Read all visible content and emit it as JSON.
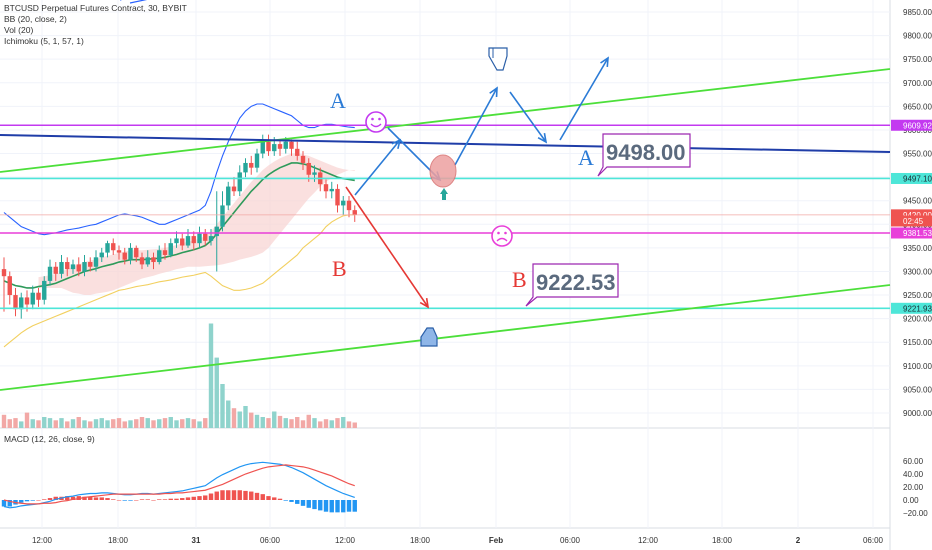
{
  "legend": {
    "symbol": "BTCUSD Perpetual Futures Contract, 30, BYBIT",
    "bb": "BB (20, close, 2)",
    "vol": "Vol (20)",
    "ichimoku": "Ichimoku (5, 1, 57, 1)",
    "macd": "MACD (12, 26, close, 9)"
  },
  "colors": {
    "up": "#26a69a",
    "down": "#ef5350",
    "bb": "#2962ff",
    "green_line": "#4cdf3a",
    "blue_line": "#1f3da8",
    "purple_line": "#c339f0",
    "cyan_line": "#4de6d8",
    "magenta_line": "#e83fd9",
    "arrow_blue": "#2b7bd6",
    "arrow_red": "#e53935",
    "annotation_box": "#9c27b0"
  },
  "chart_data": [
    {
      "type": "candlestick",
      "title": "BTCUSD Perpetual Futures Contract, 30, BYBIT",
      "y_ticks": [
        "9850.00",
        "9800.00",
        "9750.00",
        "9700.00",
        "9650.00",
        "9600.00",
        "9550.00",
        "9500.00",
        "9450.00",
        "9400.00",
        "9350.00",
        "9300.00",
        "9250.00",
        "9200.00",
        "9150.00",
        "9100.00",
        "9050.00",
        "9000.00"
      ],
      "x_ticks": [
        "12:00",
        "18:00",
        "31",
        "06:00",
        "12:00",
        "18:00",
        "Feb",
        "06:00",
        "12:00",
        "18:00",
        "2",
        "06:00"
      ],
      "ylim": [
        8975,
        9865
      ],
      "price_tags": [
        {
          "label": "9609.92",
          "color": "#c339f0"
        },
        {
          "label": "9497.10",
          "color": "#4de6d8"
        },
        {
          "label": "9420.00",
          "color": "#ef5350"
        },
        {
          "label": "02:45",
          "color": "#ef5350"
        },
        {
          "label": "9381.53",
          "color": "#e83fd9"
        },
        {
          "label": "9221.93",
          "color": "#4de6d8"
        }
      ],
      "candles": [
        [
          9305,
          9290,
          9330,
          9215
        ],
        [
          9290,
          9250,
          9300,
          9230
        ],
        [
          9250,
          9220,
          9265,
          9205
        ],
        [
          9220,
          9245,
          9255,
          9200
        ],
        [
          9245,
          9230,
          9260,
          9215
        ],
        [
          9230,
          9255,
          9270,
          9220
        ],
        [
          9255,
          9240,
          9265,
          9225
        ],
        [
          9240,
          9280,
          9290,
          9230
        ],
        [
          9280,
          9310,
          9325,
          9270
        ],
        [
          9310,
          9295,
          9320,
          9280
        ],
        [
          9295,
          9320,
          9335,
          9285
        ],
        [
          9320,
          9305,
          9330,
          9290
        ],
        [
          9305,
          9315,
          9325,
          9295
        ],
        [
          9315,
          9300,
          9330,
          9290
        ],
        [
          9300,
          9320,
          9335,
          9290
        ],
        [
          9320,
          9310,
          9330,
          9300
        ],
        [
          9310,
          9330,
          9345,
          9300
        ],
        [
          9330,
          9340,
          9350,
          9320
        ],
        [
          9340,
          9360,
          9365,
          9330
        ],
        [
          9360,
          9345,
          9370,
          9335
        ],
        [
          9345,
          9340,
          9355,
          9325
        ],
        [
          9340,
          9325,
          9350,
          9315
        ],
        [
          9325,
          9350,
          9360,
          9315
        ],
        [
          9350,
          9330,
          9355,
          9320
        ],
        [
          9330,
          9315,
          9340,
          9305
        ],
        [
          9315,
          9330,
          9345,
          9310
        ],
        [
          9330,
          9320,
          9340,
          9305
        ],
        [
          9320,
          9345,
          9355,
          9315
        ],
        [
          9345,
          9335,
          9360,
          9325
        ],
        [
          9335,
          9360,
          9370,
          9330
        ],
        [
          9360,
          9370,
          9385,
          9350
        ],
        [
          9370,
          9355,
          9380,
          9345
        ],
        [
          9355,
          9375,
          9390,
          9350
        ],
        [
          9375,
          9360,
          9385,
          9345
        ],
        [
          9360,
          9380,
          9395,
          9350
        ],
        [
          9380,
          9365,
          9390,
          9355
        ],
        [
          9365,
          9375,
          9390,
          9355
        ],
        [
          9375,
          9395,
          9470,
          9300
        ],
        [
          9395,
          9440,
          9470,
          9385
        ],
        [
          9440,
          9480,
          9490,
          9430
        ],
        [
          9480,
          9470,
          9500,
          9460
        ],
        [
          9470,
          9510,
          9525,
          9460
        ],
        [
          9510,
          9530,
          9540,
          9500
        ],
        [
          9530,
          9520,
          9545,
          9505
        ],
        [
          9520,
          9550,
          9560,
          9510
        ],
        [
          9550,
          9575,
          9590,
          9540
        ],
        [
          9575,
          9555,
          9590,
          9545
        ],
        [
          9555,
          9570,
          9585,
          9545
        ],
        [
          9570,
          9560,
          9580,
          9545
        ],
        [
          9560,
          9575,
          9585,
          9550
        ],
        [
          9575,
          9560,
          9580,
          9545
        ],
        [
          9560,
          9545,
          9575,
          9535
        ],
        [
          9545,
          9530,
          9555,
          9515
        ],
        [
          9530,
          9505,
          9540,
          9490
        ],
        [
          9505,
          9510,
          9525,
          9490
        ],
        [
          9510,
          9485,
          9520,
          9470
        ],
        [
          9485,
          9470,
          9495,
          9455
        ],
        [
          9470,
          9475,
          9490,
          9455
        ],
        [
          9475,
          9440,
          9485,
          9425
        ],
        [
          9440,
          9450,
          9460,
          9420
        ],
        [
          9450,
          9430,
          9460,
          9415
        ],
        [
          9430,
          9420,
          9440,
          9405
        ]
      ],
      "volume": [
        12,
        8,
        9,
        6,
        14,
        8,
        7,
        10,
        9,
        7,
        9,
        6,
        8,
        10,
        7,
        6,
        8,
        9,
        7,
        8,
        9,
        6,
        7,
        8,
        10,
        9,
        7,
        8,
        9,
        10,
        7,
        8,
        9,
        8,
        6,
        9,
        95,
        64,
        40,
        25,
        18,
        15,
        20,
        14,
        12,
        10,
        9,
        15,
        11,
        9,
        8,
        10,
        7,
        12,
        9,
        6,
        8,
        7,
        9,
        10,
        6,
        5
      ],
      "bb_upper": [
        9425,
        9415,
        9405,
        9395,
        9390,
        9385,
        9380,
        9378,
        9380,
        9382,
        9385,
        9388,
        9390,
        9392,
        9395,
        9398,
        9400,
        9405,
        9410,
        9415,
        9420,
        9422,
        9420,
        9418,
        9415,
        9410,
        9405,
        9400,
        9400,
        9405,
        9410,
        9415,
        9420,
        9425,
        9430,
        9440,
        9470,
        9510,
        9545,
        9575,
        9600,
        9625,
        9640,
        9650,
        9655,
        9655,
        9650,
        9645,
        9640,
        9635,
        9630,
        9620,
        9610,
        9605,
        9605,
        9610,
        9612,
        9612,
        9610,
        9608,
        9606,
        9605
      ],
      "bb_basis": [
        9280,
        9275,
        9270,
        9268,
        9265,
        9265,
        9268,
        9270,
        9272,
        9275,
        9280,
        9285,
        9290,
        9295,
        9300,
        9303,
        9306,
        9310,
        9313,
        9316,
        9320,
        9322,
        9325,
        9325,
        9325,
        9326,
        9327,
        9328,
        9330,
        9333,
        9336,
        9340,
        9343,
        9346,
        9350,
        9355,
        9365,
        9380,
        9395,
        9410,
        9425,
        9440,
        9455,
        9470,
        9482,
        9495,
        9505,
        9513,
        9520,
        9525,
        9530,
        9530,
        9528,
        9525,
        9520,
        9515,
        9510,
        9505,
        9500,
        9497,
        9495,
        9493
      ],
      "bb_lower": [
        9140,
        9150,
        9160,
        9170,
        9178,
        9185,
        9190,
        9195,
        9200,
        9205,
        9210,
        9215,
        9220,
        9225,
        9230,
        9235,
        9240,
        9245,
        9250,
        9255,
        9260,
        9262,
        9265,
        9268,
        9270,
        9272,
        9275,
        9278,
        9280,
        9282,
        9285,
        9288,
        9290,
        9292,
        9295,
        9298,
        9290,
        9280,
        9270,
        9265,
        9260,
        9260,
        9262,
        9265,
        9270,
        9275,
        9285,
        9295,
        9305,
        9315,
        9325,
        9335,
        9350,
        9360,
        9370,
        9380,
        9395,
        9405,
        9412,
        9418,
        9420,
        9420
      ],
      "macd": [
        -10,
        -12,
        -11,
        -9,
        -8,
        -7,
        -6,
        -4,
        -2,
        1,
        3,
        5,
        6,
        8,
        9,
        10,
        10,
        11,
        11,
        10,
        9,
        8,
        8,
        9,
        10,
        10,
        9,
        10,
        11,
        12,
        13,
        14,
        16,
        18,
        20,
        22,
        28,
        34,
        39,
        43,
        47,
        51,
        54,
        56,
        57,
        58,
        57,
        56,
        55,
        53,
        50,
        46,
        42,
        37,
        32,
        27,
        22,
        18,
        14,
        10,
        7,
        4
      ],
      "signal": [
        0,
        -2,
        -4,
        -5,
        -6,
        -6,
        -6,
        -5,
        -5,
        -4,
        -2,
        -1,
        1,
        2,
        4,
        5,
        6,
        7,
        8,
        9,
        9,
        9,
        9,
        9,
        9,
        9,
        9,
        9,
        10,
        10,
        11,
        11,
        12,
        13,
        14,
        15,
        18,
        21,
        24,
        28,
        32,
        36,
        40,
        43,
        46,
        49,
        51,
        52,
        53,
        54,
        53,
        52,
        51,
        49,
        46,
        43,
        40,
        37,
        33,
        29,
        25,
        22
      ],
      "macd_ticks": [
        "60.00",
        "40.00",
        "20.00",
        "0.00",
        "−20.00"
      ]
    }
  ],
  "annotations": {
    "label_a_top": "A",
    "label_b_top": "B",
    "label_a_box": "A",
    "label_b_box": "B",
    "box_a_value": "9498.00",
    "box_b_value": "9222.53",
    "smile": "☺",
    "frown": "☹",
    "hand_up": "☝",
    "hand_down": "☟"
  }
}
